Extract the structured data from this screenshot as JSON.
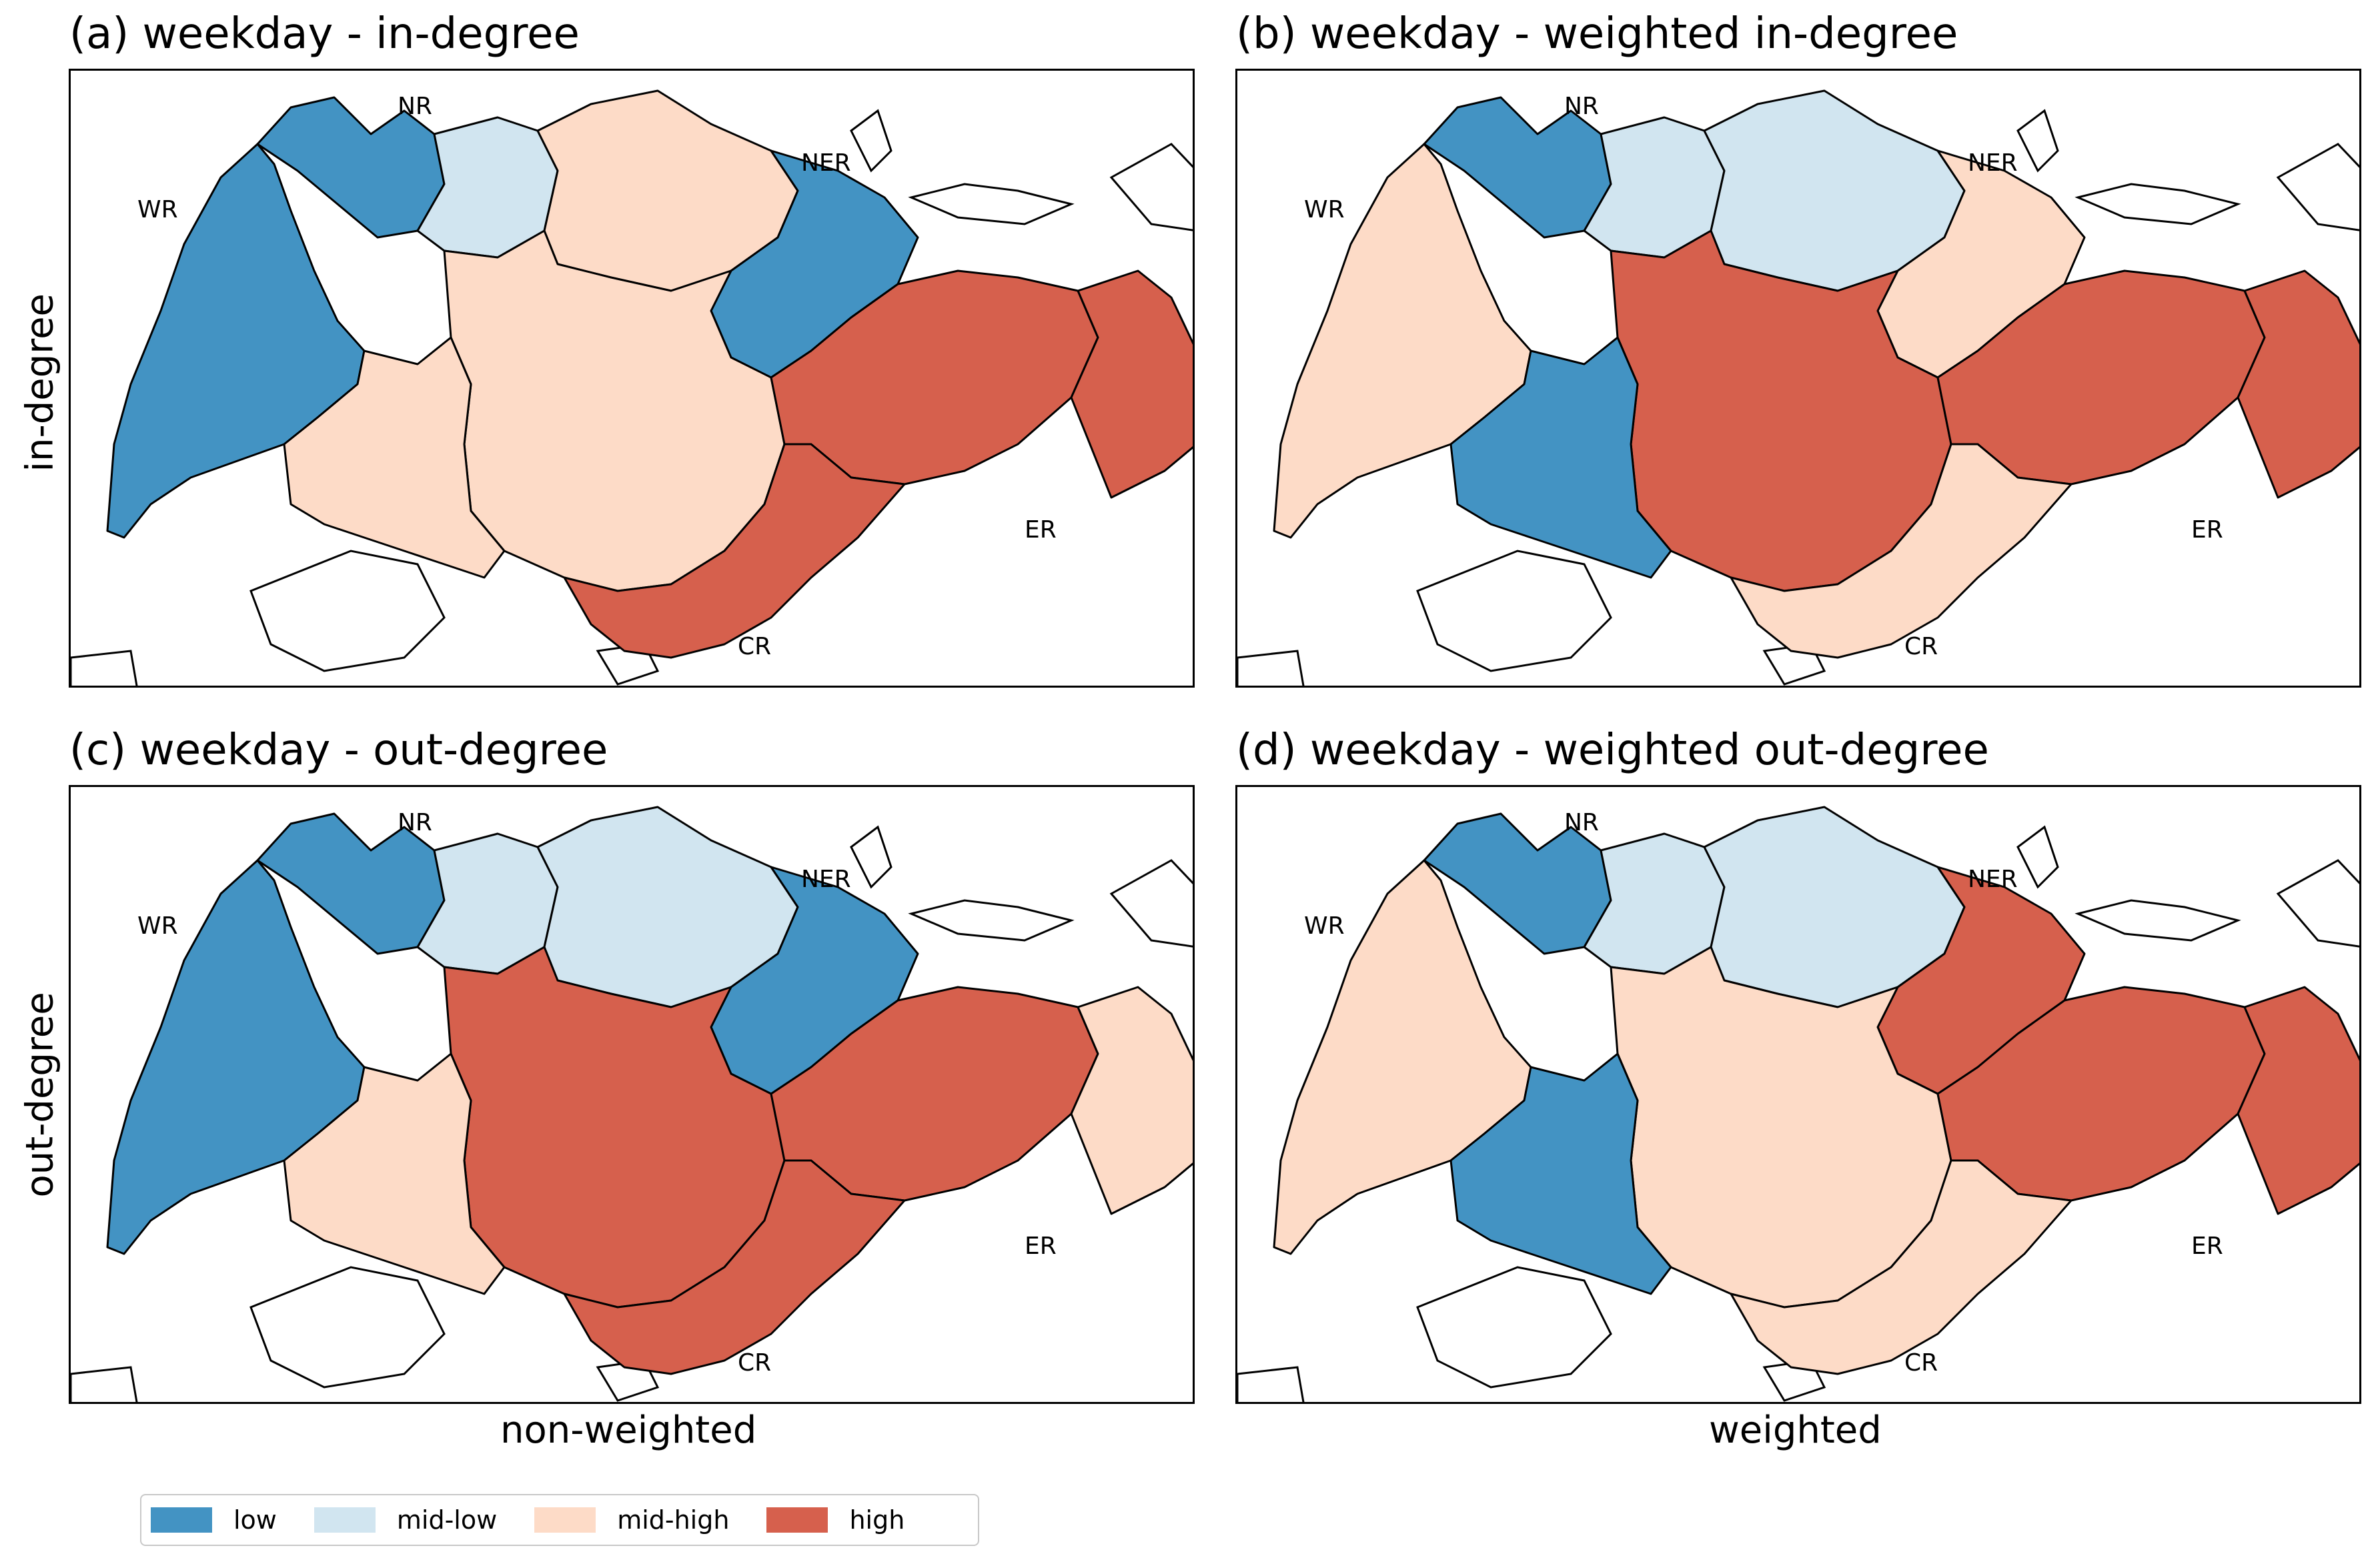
{
  "panels": [
    {
      "title": "(a) weekday - in-degree"
    },
    {
      "title": "(b) weekday - weighted in-degree"
    },
    {
      "title": "(c) weekday - out-degree"
    },
    {
      "title": "(d) weekday - weighted out-degree"
    }
  ],
  "region_labels": {
    "nr": "NR",
    "wr": "WR",
    "ner": "NER",
    "er": "ER",
    "cr": "CR"
  },
  "row_labels": {
    "top": "in-degree",
    "bottom": "out-degree"
  },
  "col_labels": {
    "left": "non-weighted",
    "right": "weighted"
  },
  "legend": [
    {
      "label": "low",
      "color": "#4393c3"
    },
    {
      "label": "mid-low",
      "color": "#d1e5f0"
    },
    {
      "label": "mid-high",
      "color": "#fddbc7"
    },
    {
      "label": "high",
      "color": "#d6604d"
    }
  ],
  "class_colors": {
    "low": "#4393c3",
    "midlow": "#d1e5f0",
    "midhigh": "#fddbc7",
    "high": "#d6604d"
  },
  "maps": [
    {
      "fills": {
        "west": "low",
        "north": "low",
        "north_central": "midlow",
        "central_north": "midhigh",
        "northeast": "low",
        "central": "midhigh",
        "east_inner": "high",
        "east_far": "high",
        "south": "high",
        "southwest": "midhigh"
      }
    },
    {
      "fills": {
        "west": "midhigh",
        "north": "low",
        "north_central": "midlow",
        "central_north": "midlow",
        "northeast": "midhigh",
        "central": "high",
        "east_inner": "high",
        "east_far": "high",
        "south": "midhigh",
        "southwest": "low"
      }
    },
    {
      "fills": {
        "west": "low",
        "north": "low",
        "north_central": "midlow",
        "central_north": "midlow",
        "northeast": "low",
        "central": "high",
        "east_inner": "high",
        "east_far": "midhigh",
        "south": "high",
        "southwest": "midhigh"
      }
    },
    {
      "fills": {
        "west": "midhigh",
        "north": "low",
        "north_central": "midlow",
        "central_north": "midlow",
        "northeast": "high",
        "central": "midhigh",
        "east_inner": "high",
        "east_far": "high",
        "south": "midhigh",
        "southwest": "low"
      }
    }
  ]
}
